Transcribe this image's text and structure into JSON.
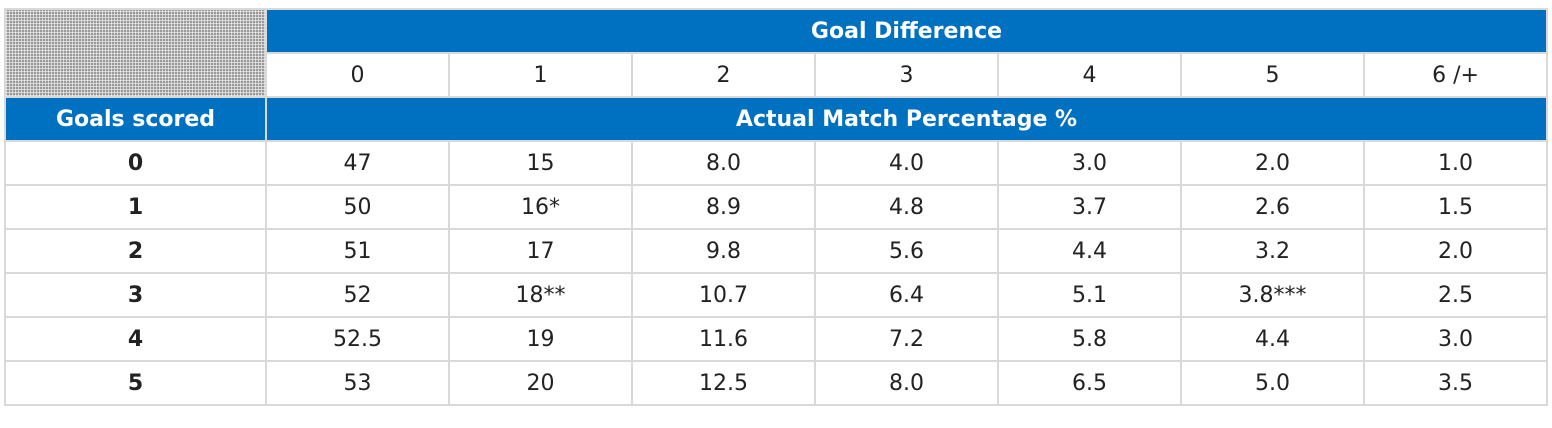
{
  "table": {
    "title": "Goal Difference",
    "row_header_label": "Goals scored",
    "subtitle": "Actual Match Percentage %",
    "columns": [
      "0",
      "1",
      "2",
      "3",
      "4",
      "5",
      "6 /+"
    ],
    "rows": [
      {
        "label": "0",
        "cells": [
          "47",
          "15",
          "8.0",
          "4.0",
          "3.0",
          "2.0",
          "1.0"
        ]
      },
      {
        "label": "1",
        "cells": [
          "50",
          "16*",
          "8.9",
          "4.8",
          "3.7",
          "2.6",
          "1.5"
        ]
      },
      {
        "label": "2",
        "cells": [
          "51",
          "17",
          "9.8",
          "5.6",
          "4.4",
          "3.2",
          "2.0"
        ]
      },
      {
        "label": "3",
        "cells": [
          "52",
          "18**",
          "10.7",
          "6.4",
          "5.1",
          "3.8***",
          "2.5"
        ]
      },
      {
        "label": "4",
        "cells": [
          "52.5",
          "19",
          "11.6",
          "7.2",
          "5.8",
          "4.4",
          "3.0"
        ]
      },
      {
        "label": "5",
        "cells": [
          "53",
          "20",
          "12.5",
          "8.0",
          "6.5",
          "5.0",
          "3.5"
        ]
      }
    ]
  },
  "colors": {
    "header_blue": "#0070c0",
    "grid_line": "#d9d9d9"
  }
}
